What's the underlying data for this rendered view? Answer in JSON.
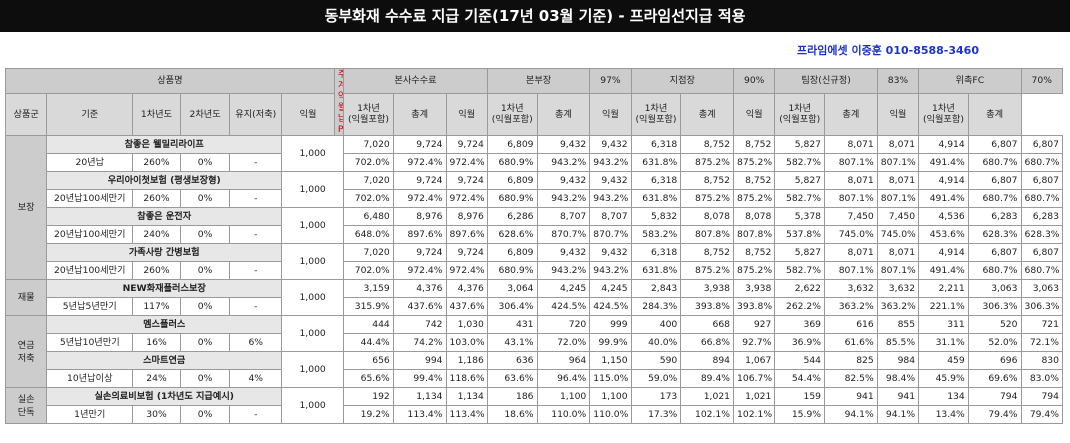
{
  "title": "동부화재 수수료 지급 기준(17년 03월 기준) - 프라임선지급 적용",
  "contact": "프라임에셋 이중훈 010-8588-3460",
  "header": {
    "product_name": "상품명",
    "weekly_p_line1": "주계약",
    "weekly_p_line2": "월납P",
    "group_label": "상품군",
    "col_basis": "기준",
    "col_year1": "1차년도",
    "col_year2": "2차년도",
    "col_maint": "유지(저축)",
    "tiers": [
      {
        "name": "본사수수료",
        "pct": ""
      },
      {
        "name": "본부장",
        "pct": "97%"
      },
      {
        "name": "지점장",
        "pct": "90%"
      },
      {
        "name": "팀장(신규정)",
        "pct": "83%"
      },
      {
        "name": "위촉FC",
        "pct": "70%"
      }
    ],
    "sub_ikwol": "익월",
    "sub_year1_l1": "1차년",
    "sub_year1_l2": "(익월포함)",
    "sub_total": "총계"
  },
  "groups": [
    {
      "label": "보장",
      "products": [
        {
          "name": "참좋은 웰밀리라이프",
          "premium": "1,000",
          "basis": "20년납",
          "y1": "260%",
          "y2": "0%",
          "maint": "-",
          "amt": [
            "7,020",
            "9,724",
            "9,724",
            "6,809",
            "9,432",
            "9,432",
            "6,318",
            "8,752",
            "8,752",
            "5,827",
            "8,071",
            "8,071",
            "4,914",
            "6,807",
            "6,807"
          ],
          "pct": [
            "702.0%",
            "972.4%",
            "972.4%",
            "680.9%",
            "943.2%",
            "943.2%",
            "631.8%",
            "875.2%",
            "875.2%",
            "582.7%",
            "807.1%",
            "807.1%",
            "491.4%",
            "680.7%",
            "680.7%"
          ]
        },
        {
          "name": "우리아이첫보험 (평생보장형)",
          "premium": "1,000",
          "basis": "20년납100세만기",
          "y1": "260%",
          "y2": "0%",
          "maint": "-",
          "amt": [
            "7,020",
            "9,724",
            "9,724",
            "6,809",
            "9,432",
            "9,432",
            "6,318",
            "8,752",
            "8,752",
            "5,827",
            "8,071",
            "8,071",
            "4,914",
            "6,807",
            "6,807"
          ],
          "pct": [
            "702.0%",
            "972.4%",
            "972.4%",
            "680.9%",
            "943.2%",
            "943.2%",
            "631.8%",
            "875.2%",
            "875.2%",
            "582.7%",
            "807.1%",
            "807.1%",
            "491.4%",
            "680.7%",
            "680.7%"
          ]
        },
        {
          "name": "참좋은 운전자",
          "premium": "1,000",
          "basis": "20년납100세만기",
          "y1": "240%",
          "y2": "0%",
          "maint": "-",
          "amt": [
            "6,480",
            "8,976",
            "8,976",
            "6,286",
            "8,707",
            "8,707",
            "5,832",
            "8,078",
            "8,078",
            "5,378",
            "7,450",
            "7,450",
            "4,536",
            "6,283",
            "6,283"
          ],
          "pct": [
            "648.0%",
            "897.6%",
            "897.6%",
            "628.6%",
            "870.7%",
            "870.7%",
            "583.2%",
            "807.8%",
            "807.8%",
            "537.8%",
            "745.0%",
            "745.0%",
            "453.6%",
            "628.3%",
            "628.3%"
          ]
        },
        {
          "name": "가족사랑 간병보험",
          "premium": "1,000",
          "basis": "20년납100세만기",
          "y1": "260%",
          "y2": "0%",
          "maint": "-",
          "amt": [
            "7,020",
            "9,724",
            "9,724",
            "6,809",
            "9,432",
            "9,432",
            "6,318",
            "8,752",
            "8,752",
            "5,827",
            "8,071",
            "8,071",
            "4,914",
            "6,807",
            "6,807"
          ],
          "pct": [
            "702.0%",
            "972.4%",
            "972.4%",
            "680.9%",
            "943.2%",
            "943.2%",
            "631.8%",
            "875.2%",
            "875.2%",
            "582.7%",
            "807.1%",
            "807.1%",
            "491.4%",
            "680.7%",
            "680.7%"
          ]
        }
      ]
    },
    {
      "label": "재물",
      "products": [
        {
          "name": "NEW화재플러스보장",
          "premium": "1,000",
          "basis": "5년납5년만기",
          "y1": "117%",
          "y2": "0%",
          "maint": "-",
          "amt": [
            "3,159",
            "4,376",
            "4,376",
            "3,064",
            "4,245",
            "4,245",
            "2,843",
            "3,938",
            "3,938",
            "2,622",
            "3,632",
            "3,632",
            "2,211",
            "3,063",
            "3,063"
          ],
          "pct": [
            "315.9%",
            "437.6%",
            "437.6%",
            "306.4%",
            "424.5%",
            "424.5%",
            "284.3%",
            "393.8%",
            "393.8%",
            "262.2%",
            "363.2%",
            "363.2%",
            "221.1%",
            "306.3%",
            "306.3%"
          ]
        }
      ]
    },
    {
      "label": "연금\n저축",
      "products": [
        {
          "name": "멤스플러스",
          "premium": "1,000",
          "basis": "5년납10년만기",
          "y1": "16%",
          "y2": "0%",
          "maint": "6%",
          "amt": [
            "444",
            "742",
            "1,030",
            "431",
            "720",
            "999",
            "400",
            "668",
            "927",
            "369",
            "616",
            "855",
            "311",
            "520",
            "721"
          ],
          "pct": [
            "44.4%",
            "74.2%",
            "103.0%",
            "43.1%",
            "72.0%",
            "99.9%",
            "40.0%",
            "66.8%",
            "92.7%",
            "36.9%",
            "61.6%",
            "85.5%",
            "31.1%",
            "52.0%",
            "72.1%"
          ]
        },
        {
          "name": "스마트연금",
          "premium": "1,000",
          "basis": "10년납이상",
          "y1": "24%",
          "y2": "0%",
          "maint": "4%",
          "amt": [
            "656",
            "994",
            "1,186",
            "636",
            "964",
            "1,150",
            "590",
            "894",
            "1,067",
            "544",
            "825",
            "984",
            "459",
            "696",
            "830"
          ],
          "pct": [
            "65.6%",
            "99.4%",
            "118.6%",
            "63.6%",
            "96.4%",
            "115.0%",
            "59.0%",
            "89.4%",
            "106.7%",
            "54.4%",
            "82.5%",
            "98.4%",
            "45.9%",
            "69.6%",
            "83.0%"
          ]
        }
      ]
    },
    {
      "label": "실손\n단독",
      "products": [
        {
          "name": "실손의료비보험 (1차년도 지급예시)",
          "premium": "1,000",
          "basis": "1년만기",
          "y1": "30%",
          "y2": "0%",
          "maint": "-",
          "amt": [
            "192",
            "1,134",
            "1,134",
            "186",
            "1,100",
            "1,100",
            "173",
            "1,021",
            "1,021",
            "159",
            "941",
            "941",
            "134",
            "794",
            "794"
          ],
          "pct": [
            "19.2%",
            "113.4%",
            "113.4%",
            "18.6%",
            "110.0%",
            "110.0%",
            "17.3%",
            "102.1%",
            "102.1%",
            "15.9%",
            "94.1%",
            "94.1%",
            "13.4%",
            "79.4%",
            "79.4%"
          ]
        }
      ]
    }
  ]
}
